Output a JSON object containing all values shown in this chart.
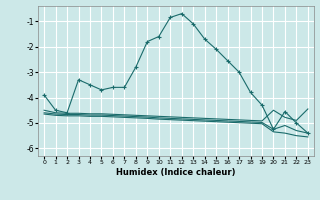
{
  "xlabel": "Humidex (Indice chaleur)",
  "xlim": [
    -0.5,
    23.5
  ],
  "ylim": [
    -6.3,
    -0.4
  ],
  "yticks": [
    -6,
    -5,
    -4,
    -3,
    -2,
    -1
  ],
  "xticks": [
    0,
    1,
    2,
    3,
    4,
    5,
    6,
    7,
    8,
    9,
    10,
    11,
    12,
    13,
    14,
    15,
    16,
    17,
    18,
    19,
    20,
    21,
    22,
    23
  ],
  "bg_color": "#cce8e8",
  "grid_color": "#ffffff",
  "line_color": "#1a6b6b",
  "line1_x": [
    0,
    1,
    2,
    3,
    4,
    5,
    6,
    7,
    8,
    9,
    10,
    11,
    12,
    13,
    14,
    15,
    16,
    17,
    18,
    19,
    20,
    21,
    22,
    23
  ],
  "line1_y": [
    -3.9,
    -4.5,
    -4.6,
    -3.3,
    -3.5,
    -3.7,
    -3.6,
    -3.6,
    -2.8,
    -1.8,
    -1.6,
    -0.85,
    -0.7,
    -1.1,
    -1.7,
    -2.1,
    -2.55,
    -3.0,
    -3.8,
    -4.3,
    -5.25,
    -4.55,
    -5.0,
    -5.4
  ],
  "line2_x": [
    0,
    1,
    2,
    3,
    4,
    5,
    6,
    7,
    8,
    9,
    10,
    11,
    12,
    13,
    14,
    15,
    16,
    17,
    18,
    19,
    20,
    21,
    22,
    23
  ],
  "line2_y": [
    -4.5,
    -4.6,
    -4.62,
    -4.62,
    -4.64,
    -4.64,
    -4.66,
    -4.68,
    -4.7,
    -4.72,
    -4.74,
    -4.76,
    -4.78,
    -4.8,
    -4.82,
    -4.84,
    -4.86,
    -4.88,
    -4.9,
    -4.92,
    -4.5,
    -4.78,
    -4.9,
    -4.45
  ],
  "line3_x": [
    0,
    1,
    2,
    3,
    4,
    5,
    6,
    7,
    8,
    9,
    10,
    11,
    12,
    13,
    14,
    15,
    16,
    17,
    18,
    19,
    20,
    21,
    22,
    23
  ],
  "line3_y": [
    -4.6,
    -4.65,
    -4.67,
    -4.67,
    -4.69,
    -4.69,
    -4.71,
    -4.73,
    -4.75,
    -4.77,
    -4.8,
    -4.82,
    -4.84,
    -4.86,
    -4.88,
    -4.9,
    -4.92,
    -4.94,
    -4.96,
    -4.98,
    -5.25,
    -5.1,
    -5.3,
    -5.4
  ],
  "line4_x": [
    0,
    1,
    2,
    3,
    4,
    5,
    6,
    7,
    8,
    9,
    10,
    11,
    12,
    13,
    14,
    15,
    16,
    17,
    18,
    19,
    20,
    21,
    22,
    23
  ],
  "line4_y": [
    -4.65,
    -4.7,
    -4.72,
    -4.72,
    -4.74,
    -4.74,
    -4.76,
    -4.78,
    -4.8,
    -4.82,
    -4.85,
    -4.87,
    -4.89,
    -4.91,
    -4.93,
    -4.95,
    -4.97,
    -4.99,
    -5.01,
    -5.03,
    -5.35,
    -5.4,
    -5.5,
    -5.55
  ]
}
